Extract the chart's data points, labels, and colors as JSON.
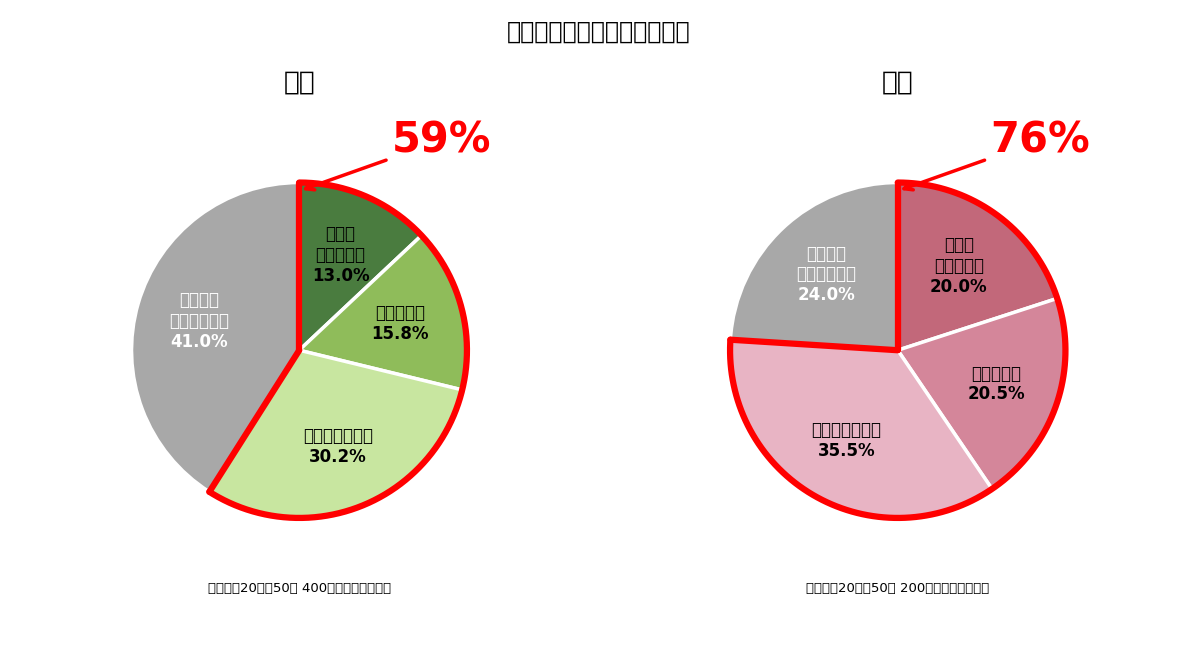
{
  "title": "冬に冷え性に悩まされますか",
  "title_fontsize": 17,
  "left_chart": {
    "subtitle": "全体",
    "subtitle_fontsize": 19,
    "labels": [
      "とても\n悩まされる",
      "悩まされる",
      "やや悩まされる",
      "まったく\n悩まされない"
    ],
    "values": [
      13.0,
      15.8,
      30.2,
      41.0
    ],
    "colors": [
      "#4a7c3f",
      "#8fbc5a",
      "#c8e6a0",
      "#a8a8a8"
    ],
    "pct_labels": [
      "13.0%",
      "15.8%",
      "30.2%",
      "41.0%"
    ],
    "highlight_pct": "59%",
    "highlight_slices": [
      0,
      1,
      2
    ],
    "footnote": "全国男女20代～50代 400名　（単一回答）"
  },
  "right_chart": {
    "subtitle": "女性",
    "subtitle_fontsize": 19,
    "labels": [
      "とても\n悩まされる",
      "悩まされる",
      "やや悩まされる",
      "まったく\n悩まされない"
    ],
    "values": [
      20.0,
      20.5,
      35.5,
      24.0
    ],
    "colors": [
      "#c2687a",
      "#d4869a",
      "#e8b4c4",
      "#a8a8a8"
    ],
    "pct_labels": [
      "20.0%",
      "20.5%",
      "35.5%",
      "24.0%"
    ],
    "highlight_pct": "76%",
    "highlight_slices": [
      0,
      1,
      2
    ],
    "footnote": "全国女性20代～50代 200名　（単一回答）"
  },
  "background_color": "#ffffff",
  "text_color": "#000000",
  "highlight_color": "#ff0000",
  "wedge_edge_color": "#ffffff",
  "red_border_color": "#ff0000",
  "label_colors": [
    "#000000",
    "#000000",
    "#000000",
    "#ffffff"
  ]
}
